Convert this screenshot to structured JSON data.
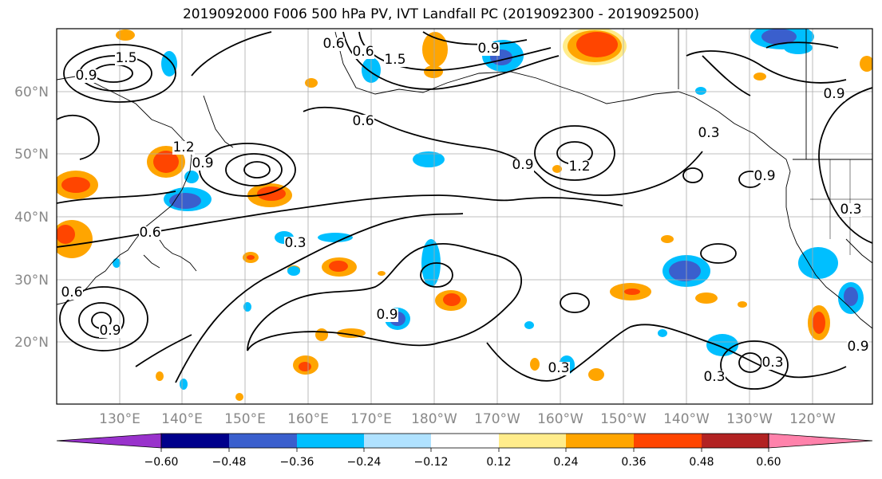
{
  "title": "2019092000 F006 500 hPa PV, IVT Landfall PC (2019092300 - 2019092500)",
  "lon_labels": [
    "130°E",
    "140°E",
    "150°E",
    "160°E",
    "170°E",
    "180°W",
    "170°W",
    "160°W",
    "150°W",
    "140°W",
    "130°W",
    "120°W"
  ],
  "lat_labels": [
    "60°N",
    "50°N",
    "40°N",
    "30°N",
    "20°N"
  ],
  "colorbar": {
    "colors": [
      "#9932cc",
      "#00008b",
      "#3a5fcd",
      "#00bfff",
      "#b0e2ff",
      "#ffffff",
      "#ffec8b",
      "#ffa500",
      "#ff4500",
      "#b22222",
      "#ff82ab"
    ],
    "tick_labels": [
      "−0.60",
      "−0.48",
      "−0.36",
      "−0.24",
      "−0.12",
      "0.12",
      "0.24",
      "0.36",
      "0.48",
      "0.60"
    ]
  },
  "contour_labels": [
    "0.6",
    "0.6",
    "1.5",
    "0.6",
    "1.5",
    "0.9",
    "1.2",
    "0.3",
    "0.9",
    "1.2",
    "0.9",
    "0.6",
    "0.3",
    "0.9",
    "0.6",
    "0.9",
    "0.3",
    "0.3",
    "0.3",
    "0.3",
    "0.9",
    "0.9",
    "0.9",
    "0.9"
  ]
}
